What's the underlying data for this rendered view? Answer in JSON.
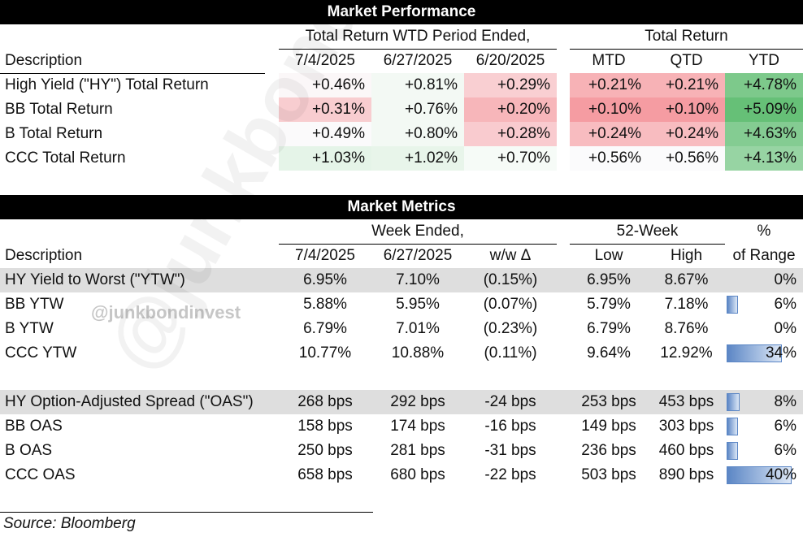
{
  "performance": {
    "title": "Market Performance",
    "group_wtd": "Total Return WTD Period Ended,",
    "group_total": "Total Return",
    "col_description": "Description",
    "columns": [
      "7/4/2025",
      "6/27/2025",
      "6/20/2025",
      "MTD",
      "QTD",
      "YTD"
    ],
    "rows": [
      {
        "label": "High Yield (\"HY\") Total Return",
        "values": [
          "+0.46%",
          "+0.81%",
          "+0.29%",
          "+0.21%",
          "+0.21%",
          "+4.78%"
        ],
        "colors": [
          "#fbf7f8",
          "#f3f9f4",
          "#f9cfd2",
          "#f7b2b6",
          "#f7b2b6",
          "#7dc98b"
        ]
      },
      {
        "label": "BB Total Return",
        "values": [
          "+0.31%",
          "+0.76%",
          "+0.20%",
          "+0.10%",
          "+0.10%",
          "+5.09%"
        ],
        "colors": [
          "#f8cdd0",
          "#f3f9f4",
          "#f7b6ba",
          "#f59ca2",
          "#f59ca2",
          "#66c077"
        ]
      },
      {
        "label": "B Total Return",
        "values": [
          "+0.49%",
          "+0.80%",
          "+0.28%",
          "+0.24%",
          "+0.24%",
          "+4.63%"
        ],
        "colors": [
          "#fbfafb",
          "#f3f9f4",
          "#f9cbcf",
          "#f8bcc0",
          "#f8bcc0",
          "#84cc92"
        ]
      },
      {
        "label": "CCC Total Return",
        "values": [
          "+1.03%",
          "+1.02%",
          "+0.70%",
          "+0.56%",
          "+0.56%",
          "+4.13%"
        ],
        "colors": [
          "#e5f4e8",
          "#e8f5ea",
          "#f6fbf7",
          "#fbfbfc",
          "#fbfbfc",
          "#97d4a3"
        ]
      }
    ]
  },
  "metrics": {
    "title": "Market Metrics",
    "group_week": "Week Ended,",
    "group_52": "52-Week",
    "group_pct": "%",
    "col_description": "Description",
    "columns": [
      "7/4/2025",
      "6/27/2025",
      "w/w Δ",
      "Low",
      "High",
      "of Range"
    ],
    "ytw_rows": [
      {
        "label": "HY Yield to Worst (\"YTW\")",
        "values": [
          "6.95%",
          "7.10%",
          "(0.15%)",
          "6.95%",
          "8.67%",
          "0%"
        ],
        "range_pct": 0,
        "shaded": true
      },
      {
        "label": "BB YTW",
        "values": [
          "5.88%",
          "5.95%",
          "(0.07%)",
          "5.79%",
          "7.18%",
          "6%"
        ],
        "range_pct": 6,
        "shaded": false
      },
      {
        "label": "B YTW",
        "values": [
          "6.79%",
          "7.01%",
          "(0.23%)",
          "6.79%",
          "8.76%",
          "0%"
        ],
        "range_pct": 0,
        "shaded": false
      },
      {
        "label": "CCC YTW",
        "values": [
          "10.77%",
          "10.88%",
          "(0.11%)",
          "9.64%",
          "12.92%",
          "34%"
        ],
        "range_pct": 34,
        "shaded": false
      }
    ],
    "oas_rows": [
      {
        "label": "HY Option-Adjusted Spread (\"OAS\")",
        "values": [
          "268 bps",
          "292 bps",
          "-24 bps",
          "253 bps",
          "453 bps",
          "8%"
        ],
        "range_pct": 8,
        "shaded": true
      },
      {
        "label": "BB OAS",
        "values": [
          "158 bps",
          "174 bps",
          "-16 bps",
          "149 bps",
          "303 bps",
          "6%"
        ],
        "range_pct": 6,
        "shaded": false
      },
      {
        "label": "B OAS",
        "values": [
          "250 bps",
          "281 bps",
          "-31 bps",
          "236 bps",
          "460 bps",
          "6%"
        ],
        "range_pct": 6,
        "shaded": false
      },
      {
        "label": "CCC OAS",
        "values": [
          "658 bps",
          "680 bps",
          "-22 bps",
          "503 bps",
          "890 bps",
          "40%"
        ],
        "range_pct": 40,
        "shaded": false
      }
    ]
  },
  "watermark": {
    "handle": "@junkbondinvest",
    "diagonal": "@junkbondinvest"
  },
  "source": "Source: Bloomberg"
}
